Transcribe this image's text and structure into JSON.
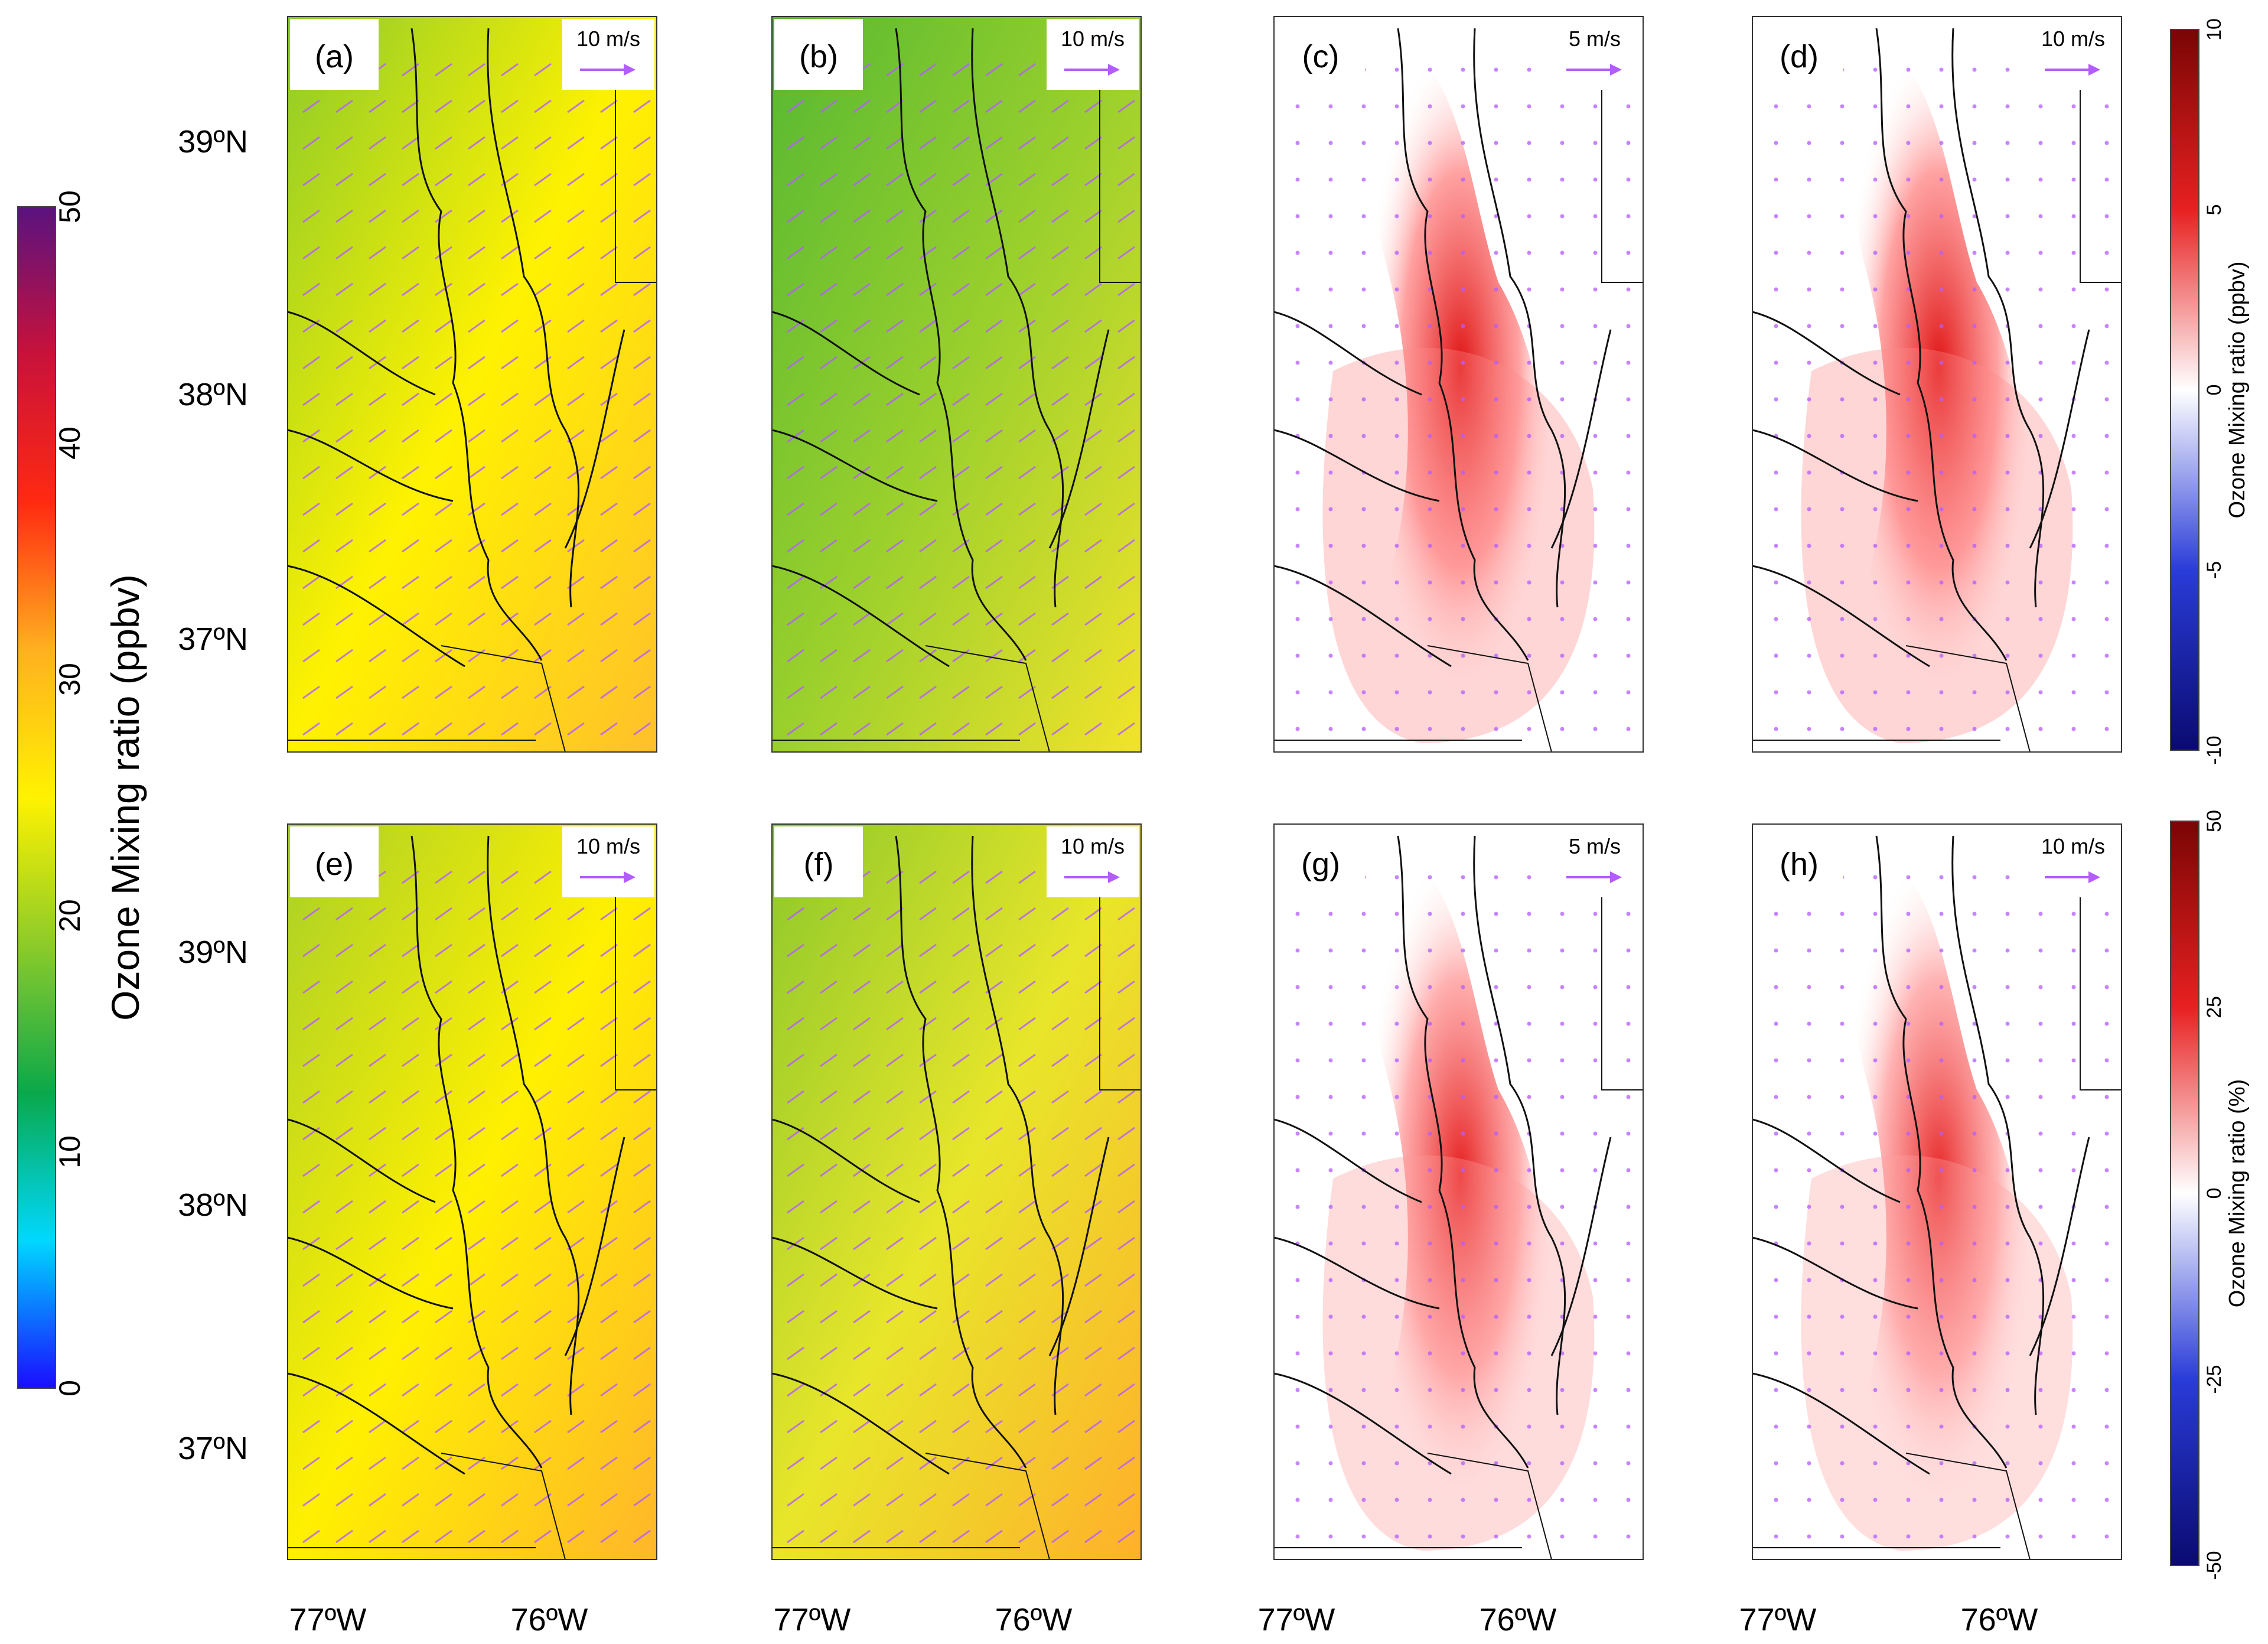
{
  "colorbars": {
    "main": {
      "label": "Ozone Mixing ratio (ppbv)",
      "ticks": [
        "0",
        "10",
        "20",
        "30",
        "40",
        "50"
      ],
      "stops": [
        "#1a0dff",
        "#00d8ff",
        "#0aa84a",
        "#8ccb2a",
        "#fff200",
        "#ffb020",
        "#ff2a10",
        "#c8123a",
        "#5a1280"
      ]
    },
    "diff_top": {
      "label": "Ozone Mixing ratio (ppbv)",
      "ticks": [
        "-10",
        "-5",
        "0",
        "5",
        "10"
      ],
      "stops": [
        "#0a0a70",
        "#2a3cd8",
        "#ffffff",
        "#e82020",
        "#7a0505"
      ]
    },
    "diff_bottom": {
      "label": "Ozone Mixing ratio (%)",
      "ticks": [
        "-50",
        "-25",
        "0",
        "25",
        "50"
      ],
      "stops": [
        "#0a0a70",
        "#2a3cd8",
        "#ffffff",
        "#e82020",
        "#7a0505"
      ]
    }
  },
  "lat_labels": [
    "39ºN",
    "38ºN",
    "37ºN"
  ],
  "lon_labels": [
    "77ºW",
    "76ºW"
  ],
  "wind_color": "#b35cff",
  "panels": [
    {
      "id": "a",
      "label": "(a)",
      "scale": "10 m/s",
      "kind": "abs",
      "fill": [
        "#8ccb2a",
        "#fff200",
        "#ffc02a"
      ]
    },
    {
      "id": "b",
      "label": "(b)",
      "scale": "10 m/s",
      "kind": "abs",
      "fill": [
        "#55b832",
        "#9ad02c",
        "#f2e32a"
      ]
    },
    {
      "id": "c",
      "label": "(c)",
      "scale": "5 m/s",
      "kind": "diff",
      "fill": [
        "#ffffff",
        "#ff8a8a",
        "#e01414"
      ]
    },
    {
      "id": "d",
      "label": "(d)",
      "scale": "10 m/s",
      "kind": "diff",
      "fill": [
        "#ffffff",
        "#ff8a8a",
        "#e01414"
      ]
    },
    {
      "id": "e",
      "label": "(e)",
      "scale": "10 m/s",
      "kind": "abs",
      "fill": [
        "#a8d028",
        "#fff000",
        "#ffb62a"
      ]
    },
    {
      "id": "f",
      "label": "(f)",
      "scale": "10 m/s",
      "kind": "abs",
      "fill": [
        "#8cc82a",
        "#e8e62a",
        "#ffb02a"
      ]
    },
    {
      "id": "g",
      "label": "(g)",
      "scale": "5 m/s",
      "kind": "diff",
      "fill": [
        "#ffffff",
        "#ff9a9a",
        "#e62020"
      ]
    },
    {
      "id": "h",
      "label": "(h)",
      "scale": "10 m/s",
      "kind": "diff",
      "fill": [
        "#ffffff",
        "#ffa0a0",
        "#e82a2a"
      ]
    }
  ]
}
